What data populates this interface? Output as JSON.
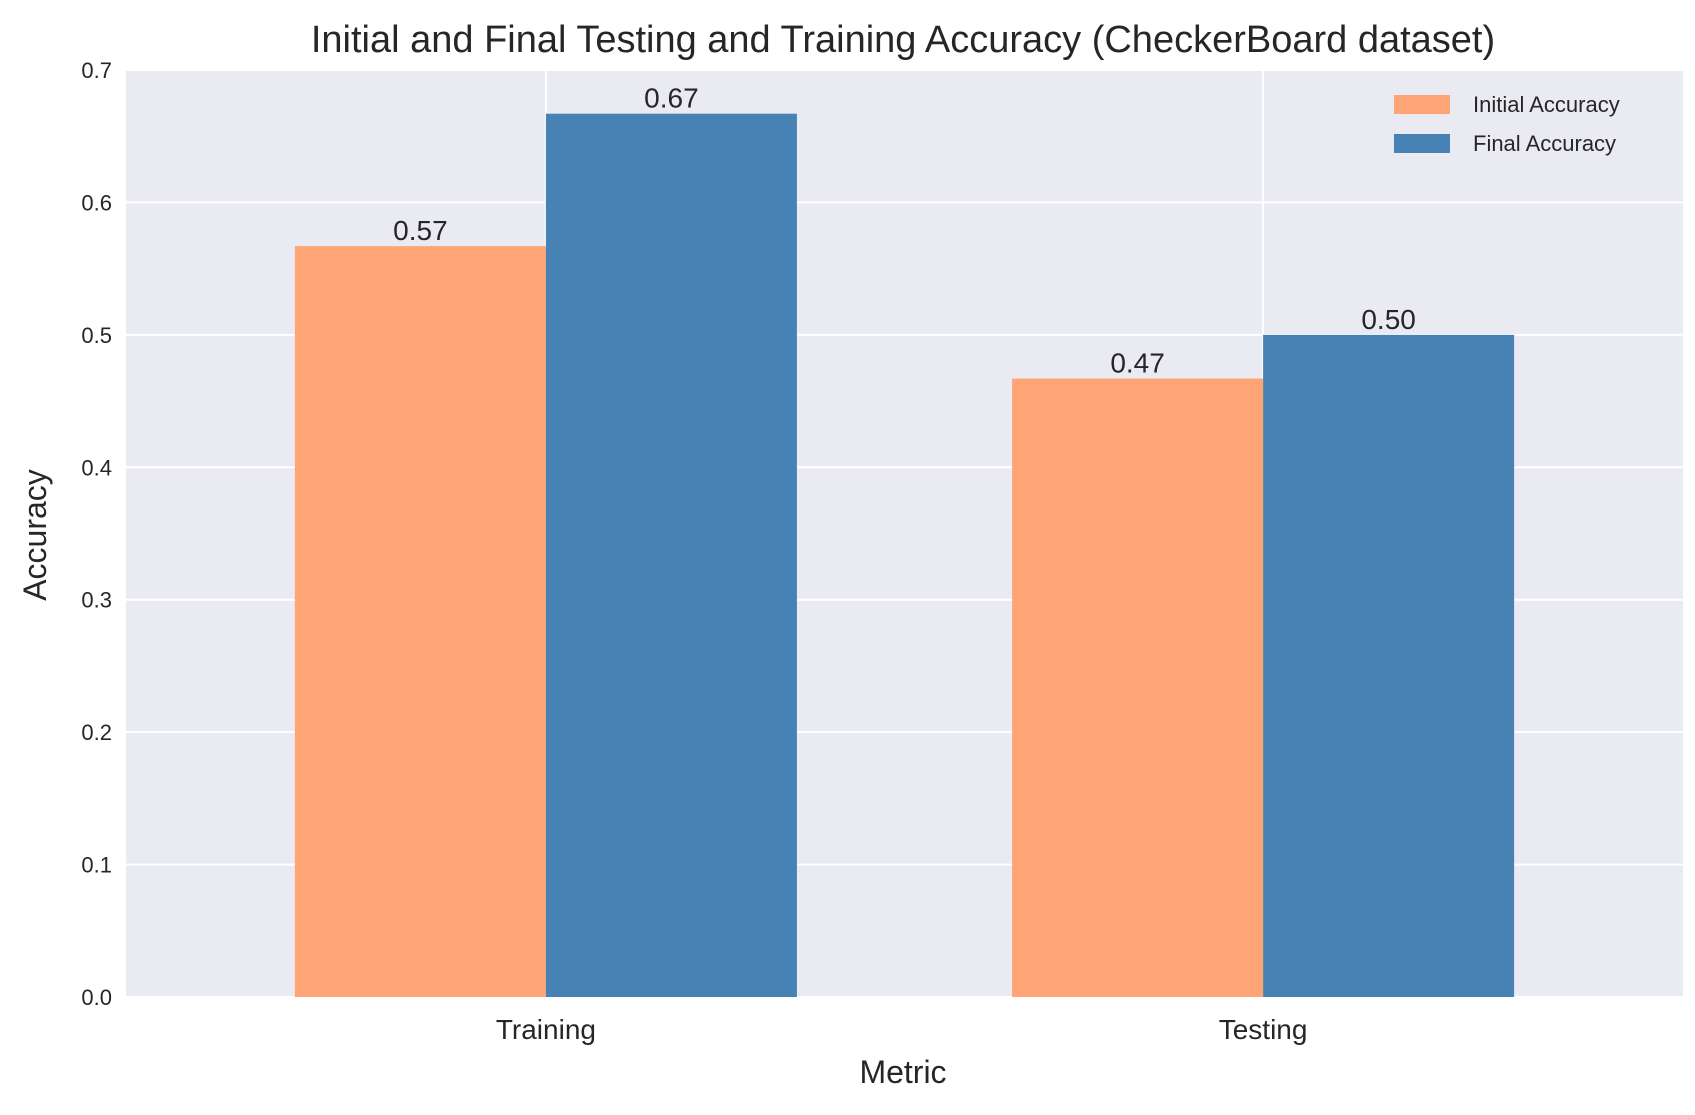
{
  "chart_data": {
    "type": "bar",
    "title": "Initial and Final Testing and Training Accuracy (CheckerBoard dataset)",
    "xlabel": "Metric",
    "ylabel": "Accuracy",
    "categories": [
      "Training",
      "Testing"
    ],
    "series": [
      {
        "name": "Initial Accuracy",
        "values": [
          0.567,
          0.467
        ],
        "labels": [
          "0.57",
          "0.47"
        ],
        "color": "#FFA474"
      },
      {
        "name": "Final Accuracy",
        "values": [
          0.667,
          0.5
        ],
        "labels": [
          "0.67",
          "0.50"
        ],
        "color": "#4682B4"
      }
    ],
    "ylim": [
      0,
      0.7
    ],
    "yticks": [
      0.0,
      0.1,
      0.2,
      0.3,
      0.4,
      0.5,
      0.6,
      0.7
    ],
    "ytick_labels": [
      "0.0",
      "0.1",
      "0.2",
      "0.3",
      "0.4",
      "0.5",
      "0.6",
      "0.7"
    ],
    "grid": true,
    "legend_position": "top-right",
    "background_color": "#EAEAF2",
    "grid_color": "#FFFFFF"
  }
}
